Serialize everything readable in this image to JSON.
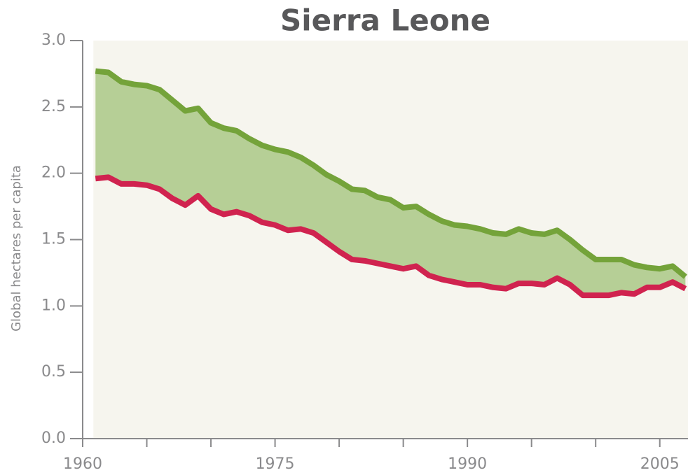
{
  "chart_data": {
    "type": "line",
    "title": "Sierra Leone",
    "ylabel": "Global hectares per capita",
    "x": [
      1961,
      1962,
      1963,
      1964,
      1965,
      1966,
      1967,
      1968,
      1969,
      1970,
      1971,
      1972,
      1973,
      1974,
      1975,
      1976,
      1977,
      1978,
      1979,
      1980,
      1981,
      1982,
      1983,
      1984,
      1985,
      1986,
      1987,
      1988,
      1989,
      1990,
      1991,
      1992,
      1993,
      1994,
      1995,
      1996,
      1997,
      1998,
      1999,
      2000,
      2001,
      2002,
      2003,
      2004,
      2005,
      2006,
      2007
    ],
    "series": [
      {
        "color": "#74a33a",
        "values": [
          2.77,
          2.76,
          2.69,
          2.67,
          2.66,
          2.63,
          2.55,
          2.47,
          2.49,
          2.38,
          2.34,
          2.32,
          2.26,
          2.21,
          2.18,
          2.16,
          2.12,
          2.06,
          1.99,
          1.94,
          1.88,
          1.87,
          1.82,
          1.8,
          1.74,
          1.75,
          1.69,
          1.64,
          1.61,
          1.6,
          1.58,
          1.55,
          1.54,
          1.58,
          1.55,
          1.54,
          1.57,
          1.5,
          1.42,
          1.35,
          1.35,
          1.35,
          1.31,
          1.29,
          1.28,
          1.3,
          1.22
        ]
      },
      {
        "color": "#d0234f",
        "values": [
          1.96,
          1.97,
          1.92,
          1.92,
          1.91,
          1.88,
          1.81,
          1.76,
          1.83,
          1.73,
          1.69,
          1.71,
          1.68,
          1.63,
          1.61,
          1.57,
          1.58,
          1.55,
          1.48,
          1.41,
          1.35,
          1.34,
          1.32,
          1.3,
          1.28,
          1.3,
          1.23,
          1.2,
          1.18,
          1.16,
          1.16,
          1.14,
          1.13,
          1.17,
          1.17,
          1.16,
          1.21,
          1.16,
          1.08,
          1.08,
          1.08,
          1.1,
          1.09,
          1.14,
          1.14,
          1.18,
          1.13
        ]
      }
    ],
    "fill_color": "#b6cf96",
    "plot_background": "#f6f5ee",
    "xlim": [
      1960,
      2007.2
    ],
    "xticks": [
      1960,
      1975,
      1990,
      2005
    ],
    "xminorticks": [
      1965,
      1970,
      1980,
      1985,
      1995,
      2000
    ],
    "ylim": [
      0,
      3
    ],
    "yticks": [
      {
        "value": 0,
        "label": "0.0"
      },
      {
        "value": 0.5,
        "label": "0.5"
      },
      {
        "value": 1,
        "label": "1.0"
      },
      {
        "value": 1.5,
        "label": "1.5"
      },
      {
        "value": 2,
        "label": "2.0"
      },
      {
        "value": 2.5,
        "label": "2.5"
      },
      {
        "value": 3,
        "label": "3.0"
      }
    ]
  }
}
